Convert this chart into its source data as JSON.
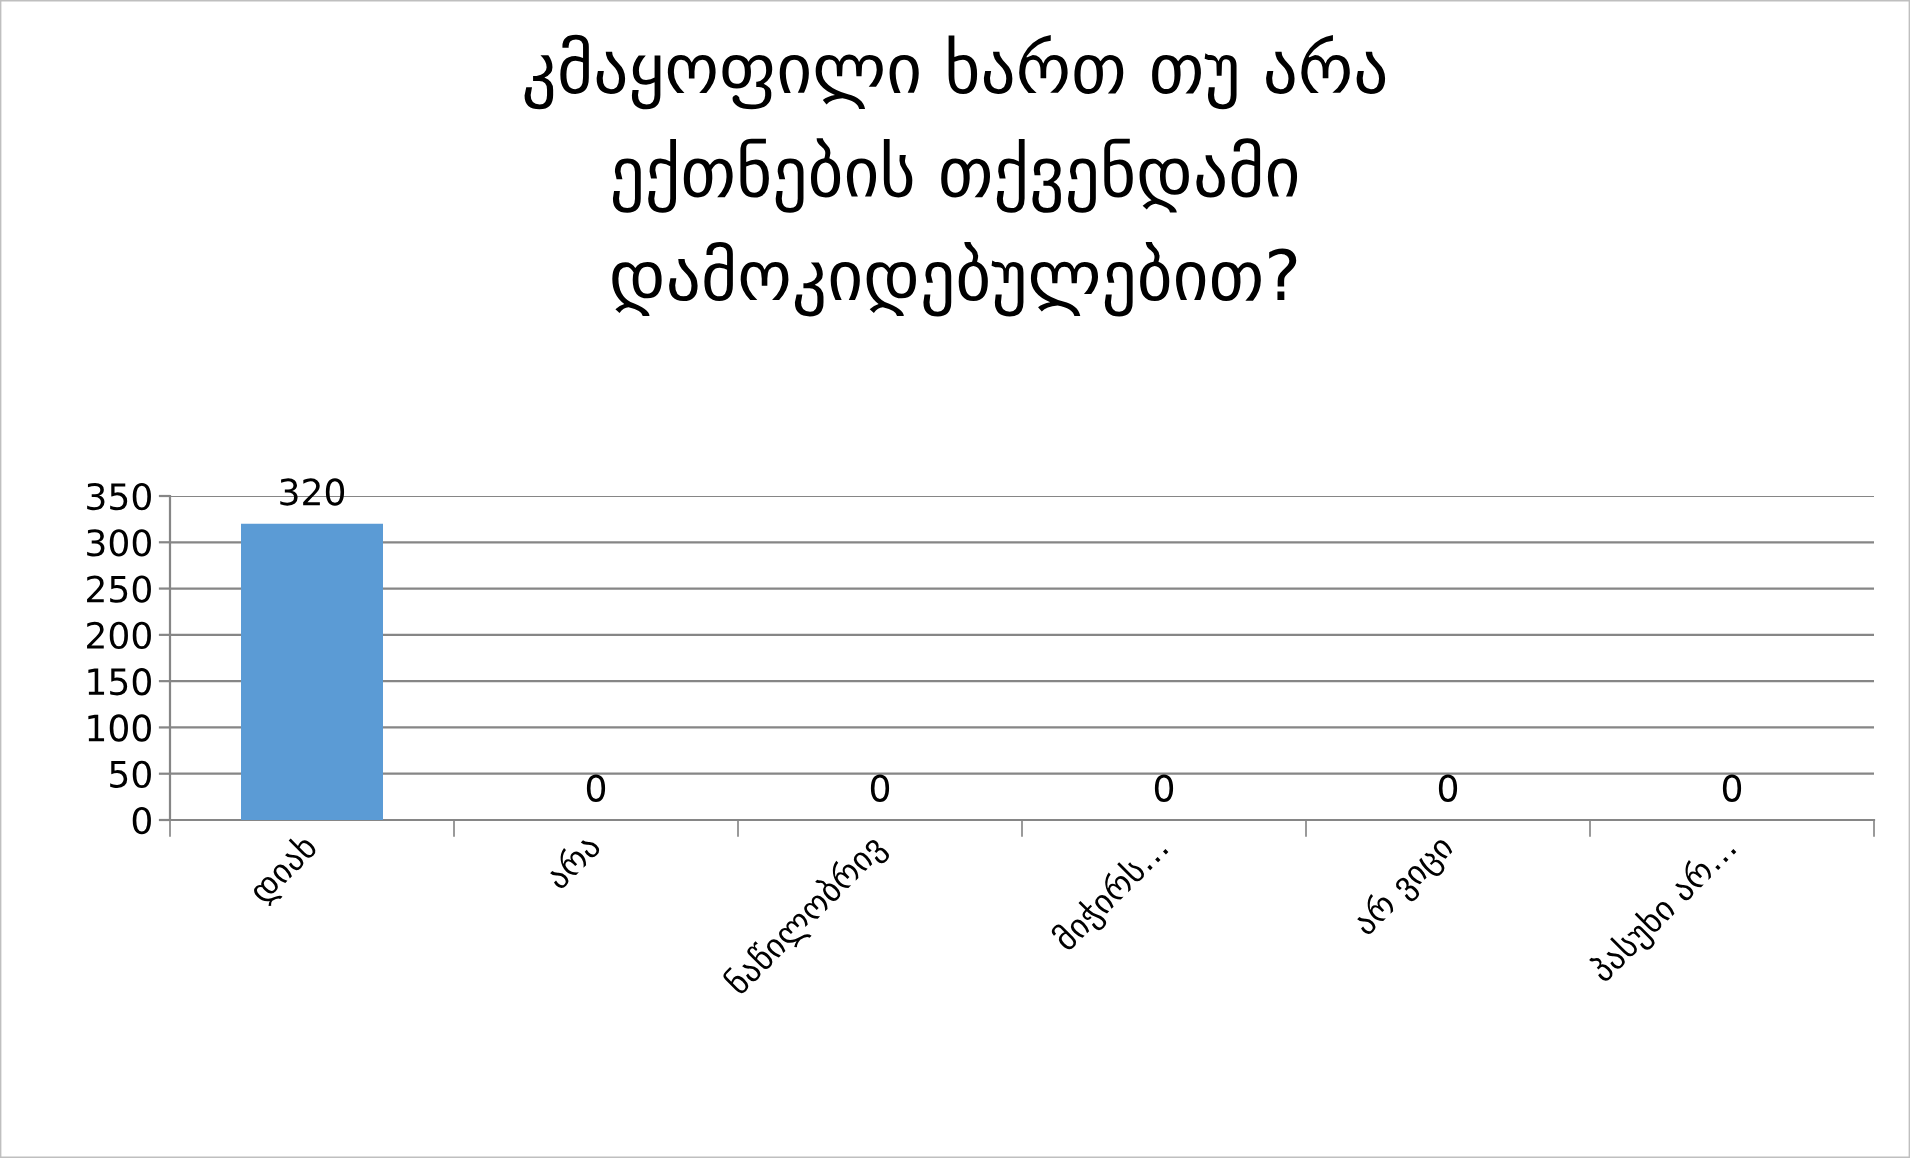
{
  "chart_data": {
    "type": "bar",
    "title": "კმაყოფილი ხართ თუ არა\nექთნების თქვენდამი\nდამოკიდებულებით?",
    "categories": [
      "დიახ",
      "არა",
      "ნაწილობრივ",
      "მიჭირს…",
      "არ ვიცი",
      "პასუხი არ…"
    ],
    "values": [
      320,
      0,
      0,
      0,
      0,
      0
    ],
    "color": "#5b9bd5",
    "ylim": [
      0,
      350
    ],
    "yticks": [
      0,
      50,
      100,
      150,
      200,
      250,
      300,
      350
    ],
    "grid": "y",
    "data_labels": true,
    "legend": false
  }
}
